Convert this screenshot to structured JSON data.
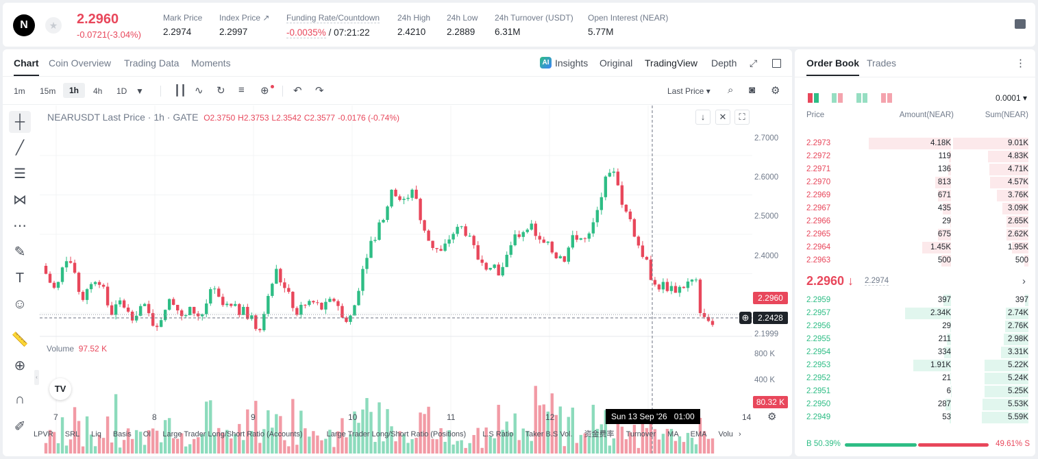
{
  "header": {
    "symbol_logo": "N",
    "last_price": "2.2960",
    "change": "-0.0721(-3.04%)",
    "stats": [
      {
        "label": "Mark Price",
        "value": "2.2974"
      },
      {
        "label": "Index Price ↗",
        "value": "2.2997"
      },
      {
        "label": "Funding Rate/Countdown",
        "value_a": "-0.0035%",
        "value_b": "/ 07:21:22"
      },
      {
        "label": "24h High",
        "value": "2.4210"
      },
      {
        "label": "24h Low",
        "value": "2.2889"
      },
      {
        "label": "24h Turnover (USDT)",
        "value": "6.31M"
      },
      {
        "label": "Open Interest (NEAR)",
        "value": "5.77M"
      }
    ]
  },
  "chart_tabs": [
    "Chart",
    "Coin Overview",
    "Trading Data",
    "Moments"
  ],
  "view_tabs": [
    "Insights",
    "Original",
    "TradingView",
    "Depth"
  ],
  "intervals": [
    "1m",
    "15m",
    "1h",
    "4h",
    "1D"
  ],
  "price_type": "Last Price",
  "ohlc": {
    "title": "NEARUSDT Last Price · 1h · GATE",
    "o": "O2.3750",
    "h": "H2.3753",
    "l": "L2.3542",
    "c": "C2.3577",
    "chg": "-0.0176 (-0.74%)"
  },
  "price_axis": [
    "2.7000",
    "2.6000",
    "2.5000",
    "2.4000",
    "2.1999"
  ],
  "price_tag": "2.2960",
  "cross_tag": "2.2428",
  "volume": {
    "label": "Volume",
    "value": "97.52 K",
    "axis": [
      "800 K",
      "400 K"
    ],
    "tag": "80.32 K"
  },
  "date_axis": [
    "7",
    "8",
    "9",
    "10",
    "11",
    "12",
    "14"
  ],
  "crosshair_date": "Sun 13 Sep '26   01:00",
  "indicators": [
    "LPVR",
    "SRL",
    "Liq",
    "Basis",
    "OI",
    "Large Trader Long/Short Ratio (Accounts)",
    "Large Trader Long/Short Ratio (Positions)",
    "L.S Ratio",
    "Taker B.S Vol.",
    "资金费率",
    "Turnover",
    "MA",
    "EMA",
    "Volu"
  ],
  "orderbook": {
    "tabs": [
      "Order Book",
      "Trades"
    ],
    "precision": "0.0001",
    "cols": [
      "Price",
      "Amount(NEAR)",
      "Sum(NEAR)"
    ],
    "asks": [
      [
        "2.2973",
        "4.18K",
        "9.01K"
      ],
      [
        "2.2972",
        "119",
        "4.83K"
      ],
      [
        "2.2971",
        "136",
        "4.71K"
      ],
      [
        "2.2970",
        "813",
        "4.57K"
      ],
      [
        "2.2969",
        "671",
        "3.76K"
      ],
      [
        "2.2967",
        "435",
        "3.09K"
      ],
      [
        "2.2966",
        "29",
        "2.65K"
      ],
      [
        "2.2965",
        "675",
        "2.62K"
      ],
      [
        "2.2964",
        "1.45K",
        "1.95K"
      ],
      [
        "2.2963",
        "500",
        "500"
      ]
    ],
    "mid_price": "2.2960 ↓",
    "mark": "2.2974",
    "bids": [
      [
        "2.2959",
        "397",
        "397"
      ],
      [
        "2.2957",
        "2.34K",
        "2.74K"
      ],
      [
        "2.2956",
        "29",
        "2.76K"
      ],
      [
        "2.2955",
        "211",
        "2.98K"
      ],
      [
        "2.2954",
        "334",
        "3.31K"
      ],
      [
        "2.2953",
        "1.91K",
        "5.22K"
      ],
      [
        "2.2952",
        "21",
        "5.24K"
      ],
      [
        "2.2951",
        "6",
        "5.25K"
      ],
      [
        "2.2950",
        "287",
        "5.53K"
      ],
      [
        "2.2949",
        "53",
        "5.59K"
      ]
    ],
    "buy_ratio": "B 50.39%",
    "sell_ratio": "49.61% S"
  },
  "colors": {
    "up": "#2ebd85",
    "down": "#e8475b"
  }
}
